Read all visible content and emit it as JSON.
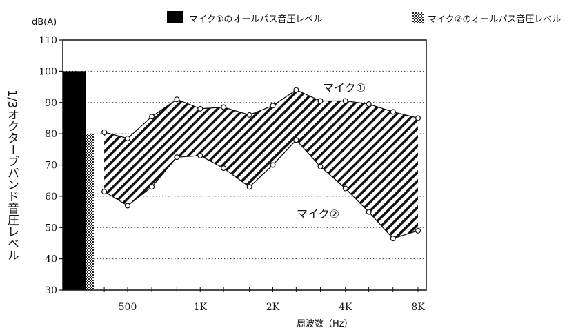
{
  "chart_data": {
    "type": "line",
    "unit_label": "dB(A)",
    "ylabel": "1/3オクターブバンド音圧レベル",
    "xlabel": "周波数（Hz）",
    "ylim": [
      30,
      110
    ],
    "yticks": [
      30,
      40,
      50,
      60,
      70,
      80,
      90,
      100,
      110
    ],
    "grid": "dotted horizontal",
    "legend": [
      {
        "label": "マイク①のオールパス音圧レベル",
        "color": "#000000",
        "pattern": "solid"
      },
      {
        "label": "マイク②のオールパス音圧レベル",
        "color": "#000000",
        "pattern": "crosshatch"
      }
    ],
    "xticks": [
      "500",
      "1K",
      "2K",
      "4K",
      "8K"
    ],
    "overall_bars": [
      {
        "name": "マイク①のオールパス音圧レベル",
        "value": 100
      },
      {
        "name": "マイク②のオールパス音圧レベル",
        "value": 80
      }
    ],
    "x": [
      "400",
      "500",
      "630",
      "800",
      "1K",
      "1.25K",
      "1.6K",
      "2K",
      "2.5K",
      "3.15K",
      "4K",
      "5K",
      "6.3K",
      "8K"
    ],
    "series": [
      {
        "name": "マイク①",
        "values": [
          80.5,
          78.5,
          85.5,
          91,
          88,
          88.5,
          86,
          89,
          94,
          90.5,
          90.5,
          89.5,
          87,
          85
        ]
      },
      {
        "name": "マイク②",
        "values": [
          61.5,
          57,
          63,
          72.5,
          73,
          69,
          63,
          70,
          78,
          69.5,
          62.5,
          55,
          46.5,
          49
        ]
      }
    ],
    "annotations": [
      "マイク①",
      "マイク②"
    ]
  }
}
